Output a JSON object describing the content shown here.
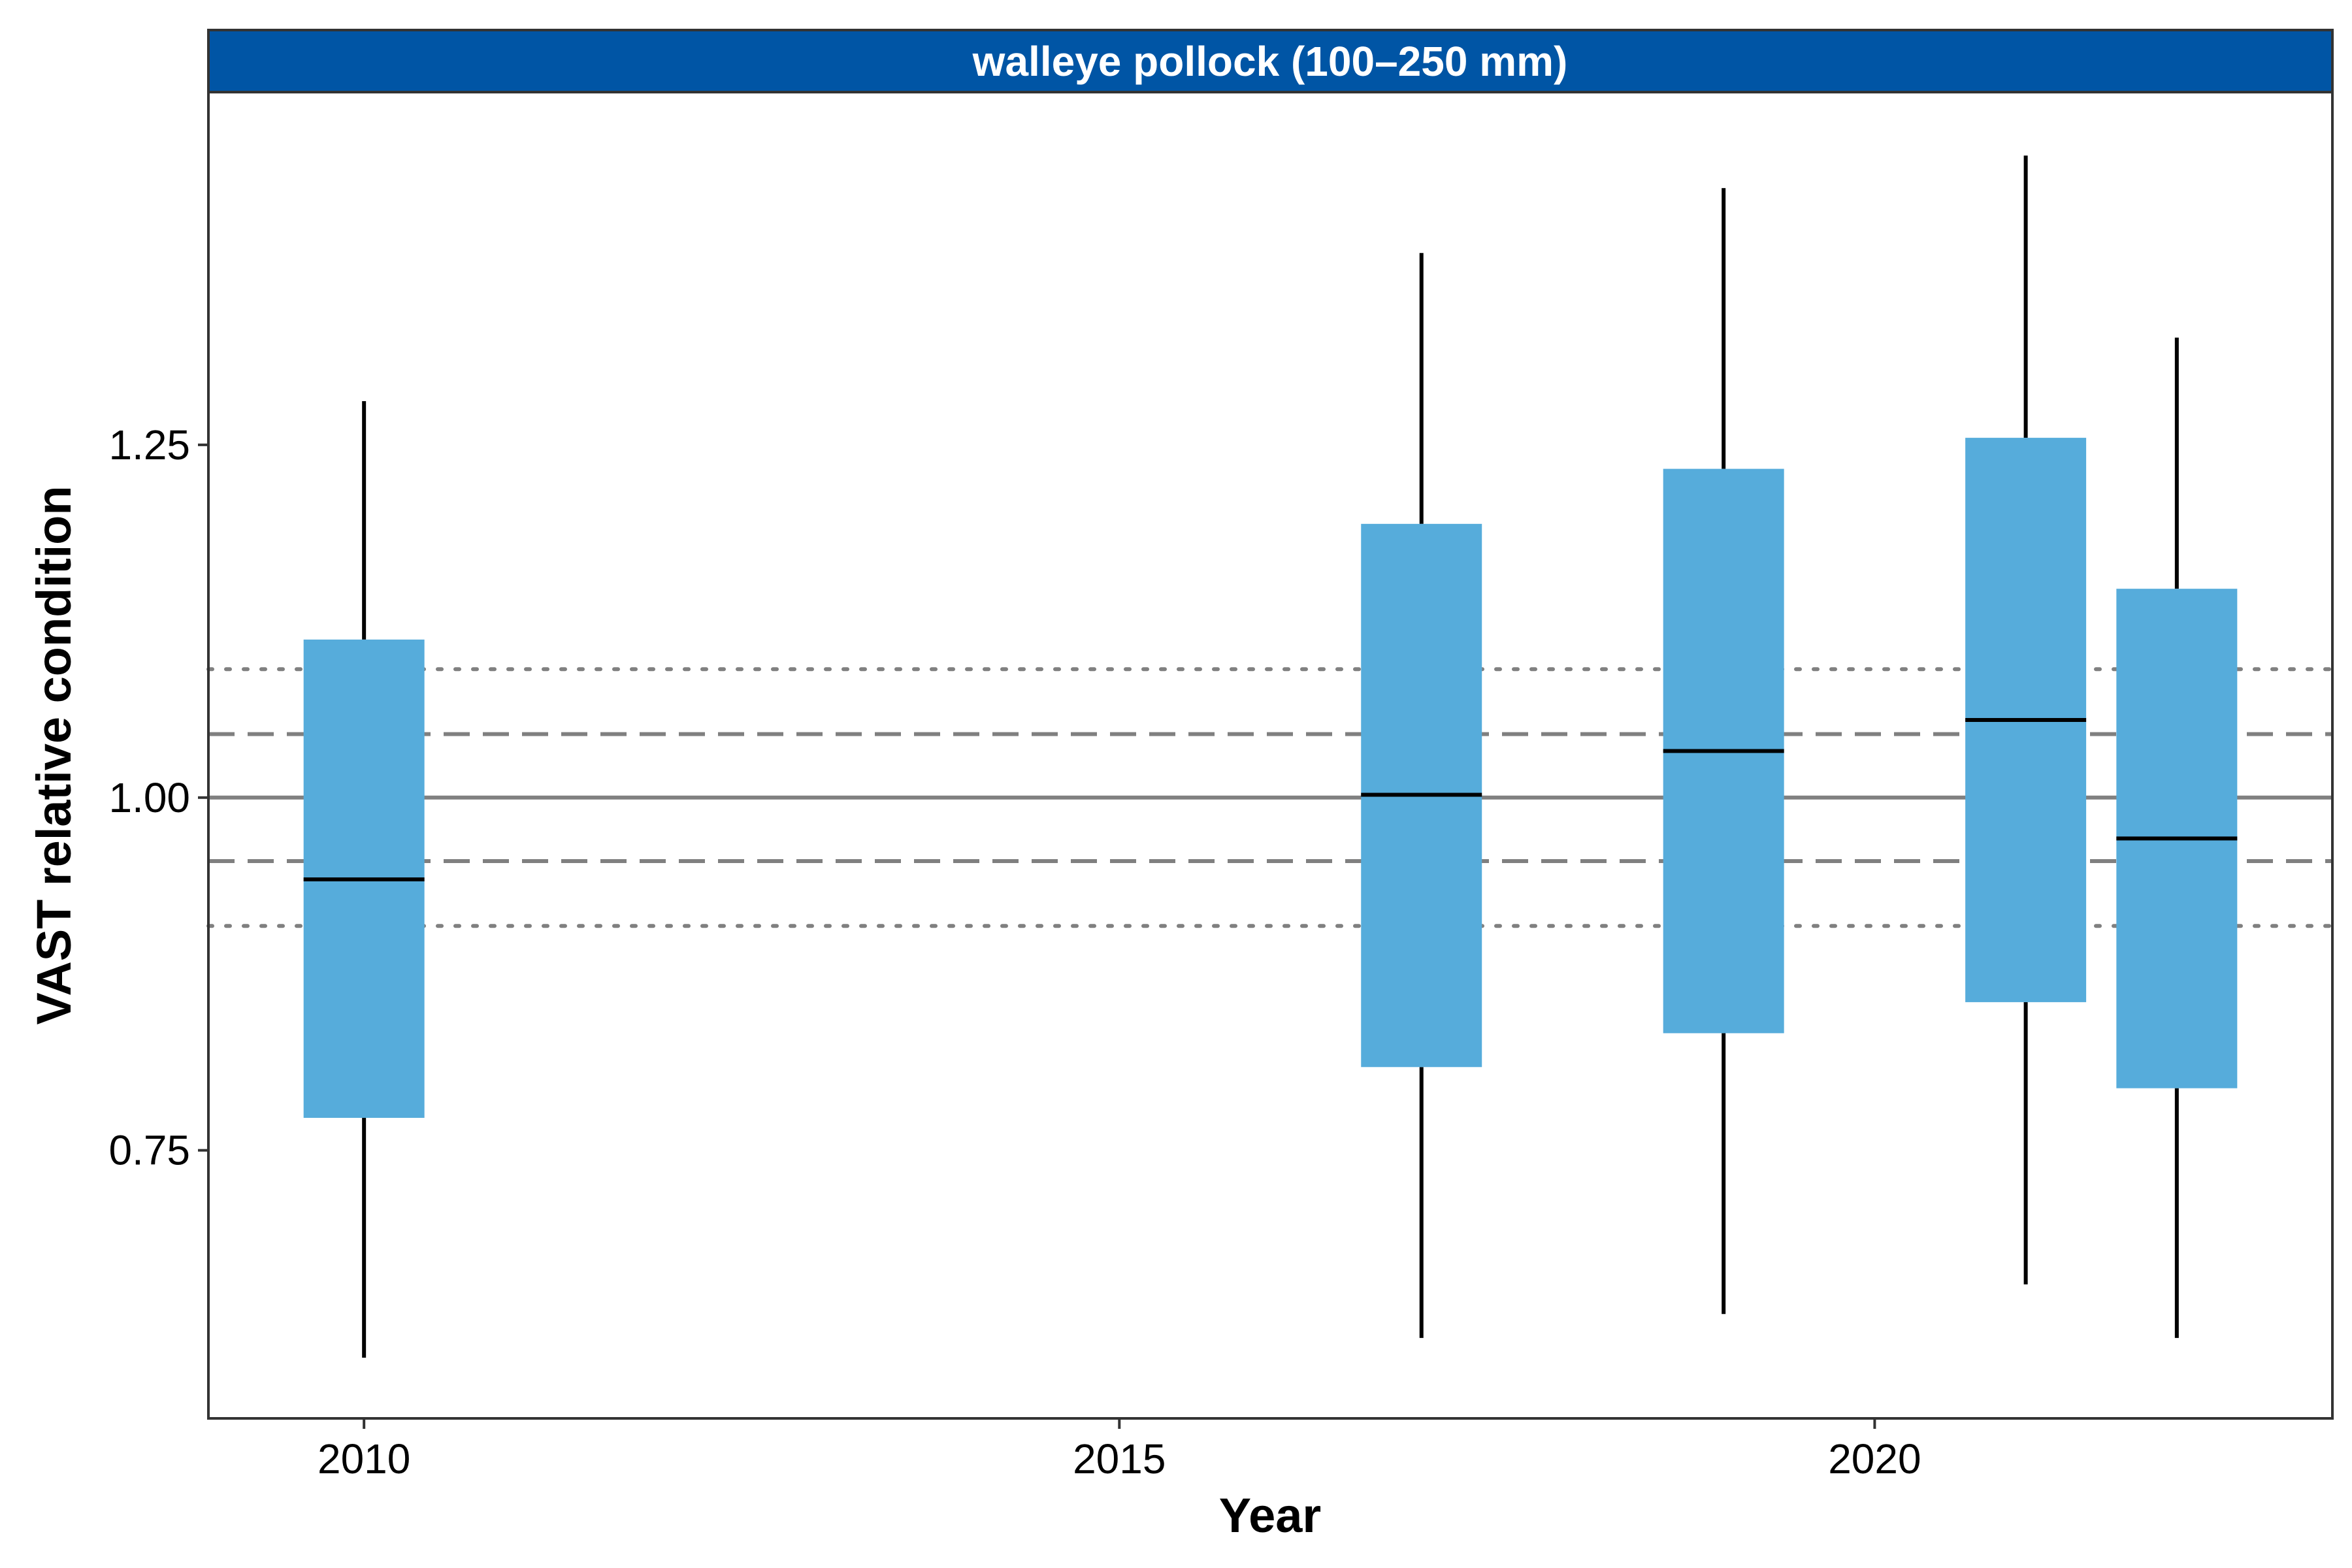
{
  "chart_data": {
    "type": "box",
    "facet_title": "walleye pollock (100–250 mm)",
    "xlabel": "Year",
    "ylabel": "VAST relative condition",
    "xlim": [
      2008.97,
      2023.03
    ],
    "ylim": [
      0.56,
      1.5
    ],
    "x_ticks": [
      2010,
      2015,
      2020
    ],
    "x_tick_labels": [
      "2010",
      "2015",
      "2020"
    ],
    "y_ticks": [
      0.75,
      1.0,
      1.25
    ],
    "y_tick_labels": [
      "0.75",
      "1.00",
      "1.25"
    ],
    "reference_lines": [
      {
        "y": 1.0,
        "style": "solid"
      },
      {
        "y": 1.045,
        "style": "dashed"
      },
      {
        "y": 0.955,
        "style": "dashed"
      },
      {
        "y": 1.091,
        "style": "dotted"
      },
      {
        "y": 0.909,
        "style": "dotted"
      }
    ],
    "boxes": [
      {
        "x": 2010,
        "whisker_low": 0.603,
        "q1": 0.773,
        "median": 0.942,
        "q3": 1.112,
        "whisker_high": 1.281
      },
      {
        "x": 2017,
        "whisker_low": 0.617,
        "q1": 0.809,
        "median": 1.002,
        "q3": 1.194,
        "whisker_high": 1.386
      },
      {
        "x": 2019,
        "whisker_low": 0.634,
        "q1": 0.833,
        "median": 1.033,
        "q3": 1.233,
        "whisker_high": 1.432
      },
      {
        "x": 2021,
        "whisker_low": 0.655,
        "q1": 0.855,
        "median": 1.055,
        "q3": 1.255,
        "whisker_high": 1.455
      },
      {
        "x": 2022,
        "whisker_low": 0.617,
        "q1": 0.794,
        "median": 0.971,
        "q3": 1.148,
        "whisker_high": 1.326
      }
    ],
    "grid": false,
    "legend": "none",
    "colors": {
      "box_fill": "#56ACDB",
      "strip_fill": "#0055A5",
      "reference_line": "#808080",
      "whisker": "#000000",
      "median": "#000000"
    }
  }
}
